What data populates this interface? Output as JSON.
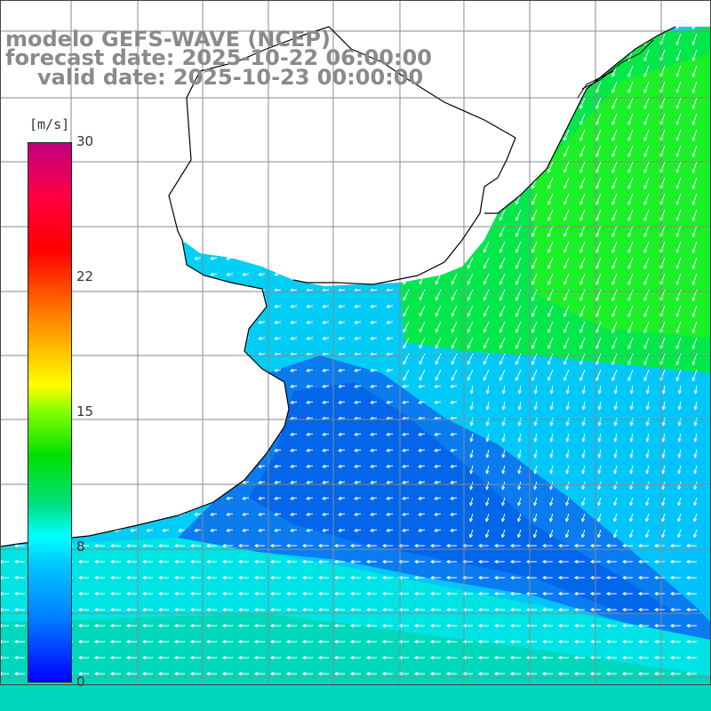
{
  "titles": {
    "line1": "modelo GEFS-WAVE (NCEP)",
    "line2": "forecast date: 2025-10-22 06:00:00",
    "line3": "valid date: 2025-10-23 00:00:00"
  },
  "colorbar": {
    "unit": "[m/s]",
    "ticks": [
      "30",
      "22",
      "15",
      "8",
      "0"
    ],
    "colors": [
      "#0000ff",
      "#0080ff",
      "#00ffff",
      "#00e000",
      "#ffff00",
      "#ff8000",
      "#ff0000",
      "#c0007f"
    ]
  },
  "map": {
    "variable": "wind speed and direction",
    "land_color": "#ffffff",
    "grid_color": "#888888",
    "coastline_color": "#000000"
  }
}
